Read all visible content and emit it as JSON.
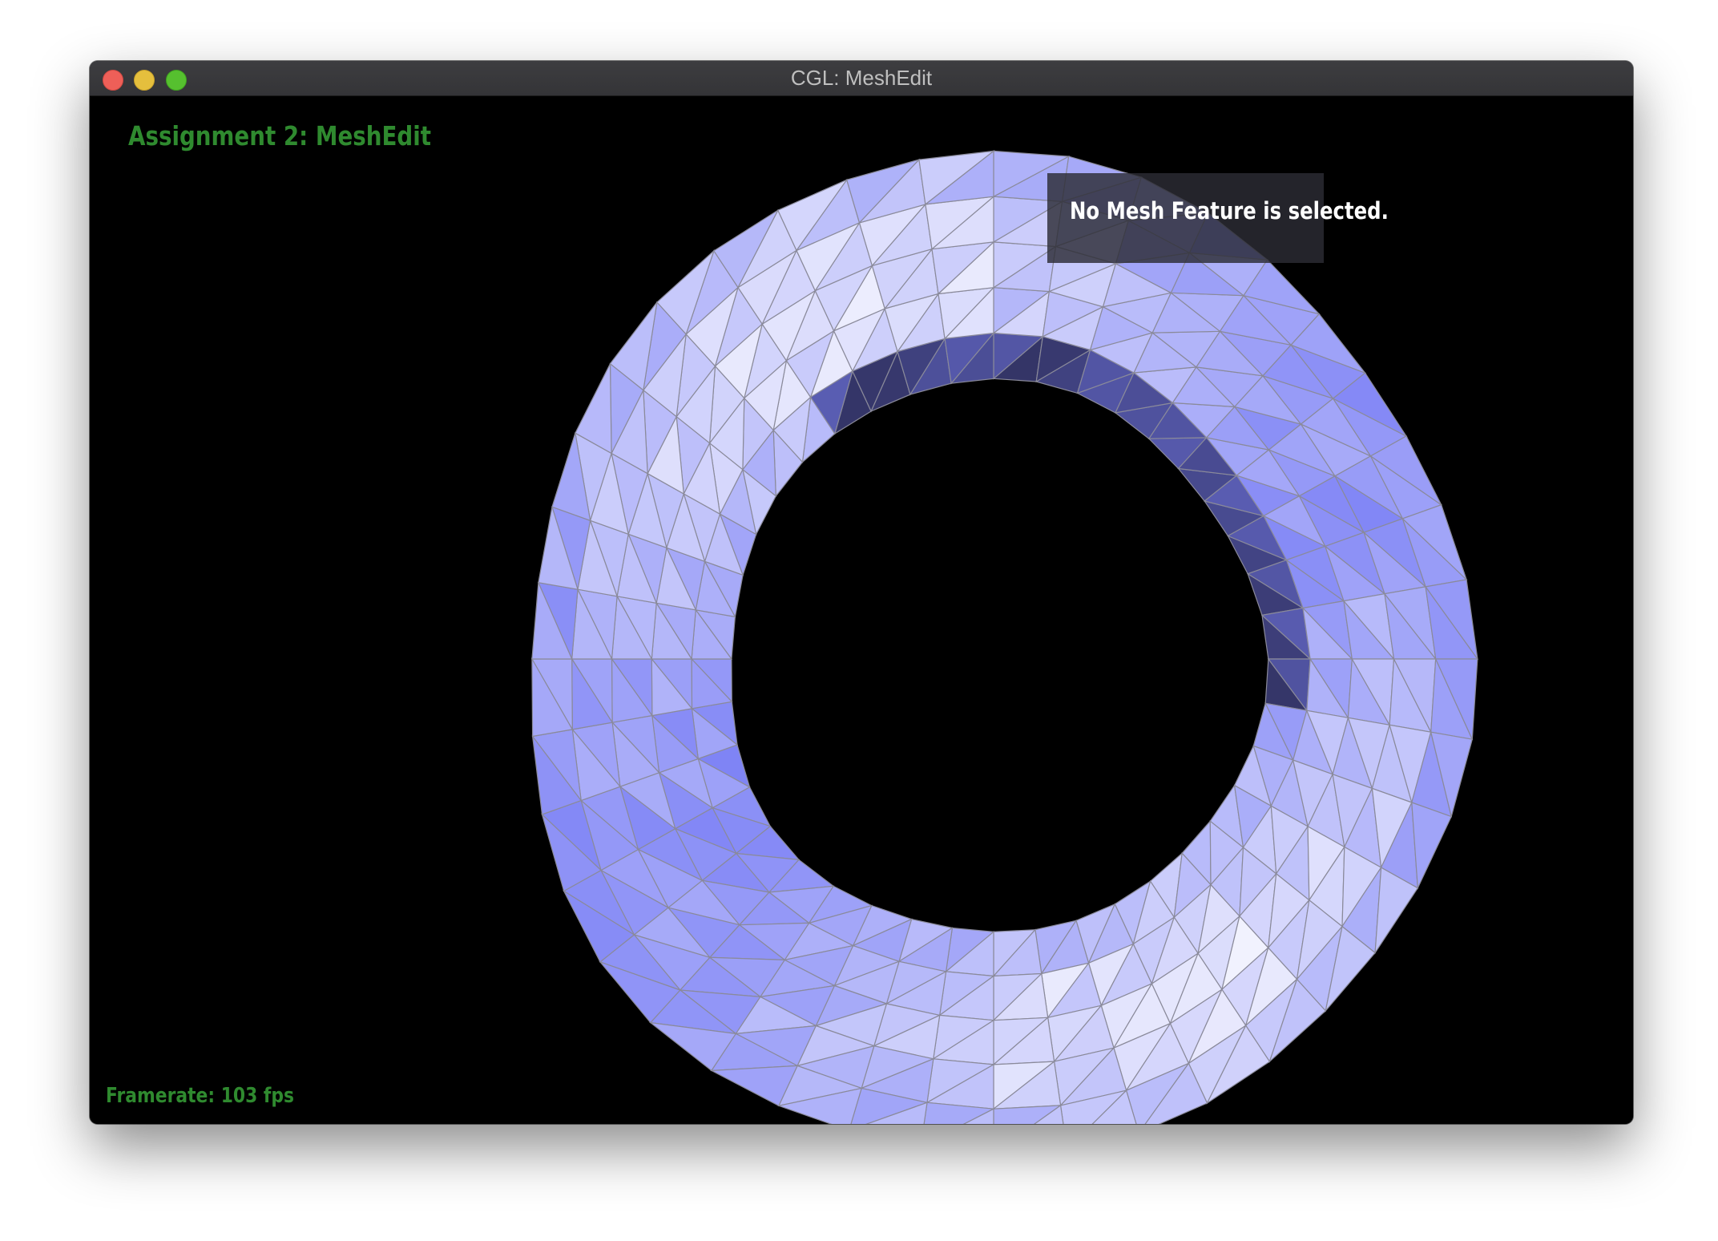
{
  "window": {
    "title": "CGL: MeshEdit"
  },
  "hud": {
    "app_title": "Assignment 2: MeshEdit",
    "selection_status": "No Mesh Feature is selected.",
    "framerate": "Framerate: 103 fps"
  },
  "colors": {
    "hud_text": "#2f8a2f",
    "mesh_light": "#ffffff",
    "mesh_dark": "#7b80f5",
    "mesh_inner_shadow": "#1c1c38",
    "wireframe": "#8a8a9a",
    "background": "#000000"
  },
  "icons": {
    "close": "close-icon",
    "minimize": "minimize-icon",
    "maximize": "maximize-icon"
  }
}
